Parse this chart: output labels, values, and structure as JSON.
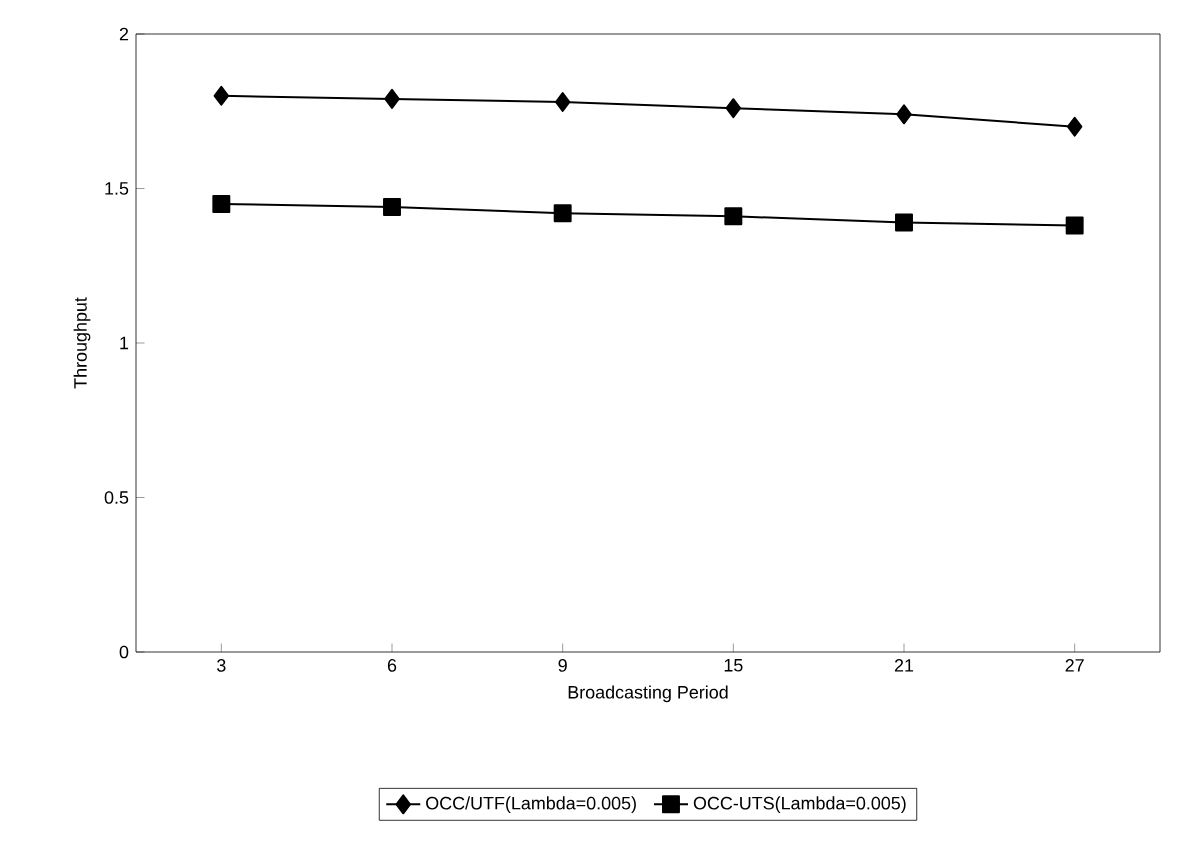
{
  "chart_data": {
    "type": "line",
    "xlabel": "Broadcasting Period",
    "ylabel": "Throughput",
    "categories": [
      "3",
      "6",
      "9",
      "15",
      "21",
      "27"
    ],
    "ylim": [
      0,
      2
    ],
    "yticks": [
      0,
      0.5,
      1,
      1.5,
      2
    ],
    "legend": "bottom",
    "grid": false,
    "series": [
      {
        "name": "OCC/UTF(Lambda=0.005)",
        "color": "#000000",
        "marker": "diamond",
        "values": [
          1.8,
          1.79,
          1.78,
          1.76,
          1.74,
          1.7
        ]
      },
      {
        "name": "OCC-UTS(Lambda=0.005)",
        "color": "#000000",
        "marker": "square",
        "values": [
          1.45,
          1.44,
          1.42,
          1.41,
          1.39,
          1.38
        ]
      }
    ]
  }
}
